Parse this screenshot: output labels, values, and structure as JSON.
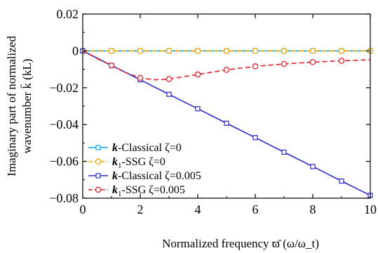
{
  "chart_data": {
    "type": "line",
    "xlabel": "Normalized frequency ϖ̄ (ω/ω_t)",
    "ylabel_line1": "Imaginary part of normalized",
    "ylabel_line2": "wavenumber k̄ (kL)",
    "xlim": [
      0,
      10
    ],
    "ylim": [
      -0.08,
      0.02
    ],
    "x_ticks": [
      0,
      2,
      4,
      6,
      8,
      10
    ],
    "x_tick_labels": [
      "0",
      "2",
      "4",
      "6",
      "8",
      "10"
    ],
    "y_ticks": [
      0.02,
      0,
      -0.02,
      -0.04,
      -0.06,
      -0.08
    ],
    "y_tick_labels": [
      "0.02",
      "0",
      "−0.02",
      "−0.04",
      "−0.06",
      "−0.08"
    ],
    "grid": false,
    "legend_position": "bottom-left",
    "series": [
      {
        "name": "k-Classical ζ=0",
        "color": "#00a8e8",
        "marker": "square",
        "dashed": false,
        "x": [
          0,
          1,
          2,
          3,
          4,
          5,
          6,
          7,
          8,
          9,
          10
        ],
        "y": [
          0,
          0,
          0,
          0,
          0,
          0,
          0,
          0,
          0,
          0,
          0
        ]
      },
      {
        "name": "k1-SSG ζ=0",
        "color": "#f0a800",
        "marker": "circle",
        "dashed": true,
        "x": [
          0,
          1,
          2,
          3,
          4,
          5,
          6,
          7,
          8,
          9,
          10
        ],
        "y": [
          0,
          0,
          0,
          0,
          0,
          0,
          0,
          0,
          0,
          0,
          0
        ]
      },
      {
        "name": "k-Classical ζ=0.005",
        "color": "#2a2ad0",
        "marker": "square",
        "dashed": false,
        "x": [
          0,
          1,
          2,
          3,
          4,
          5,
          6,
          7,
          8,
          9,
          10
        ],
        "y": [
          0,
          -0.0079,
          -0.0157,
          -0.0236,
          -0.0314,
          -0.0393,
          -0.0471,
          -0.055,
          -0.0628,
          -0.0707,
          -0.0785
        ]
      },
      {
        "name": "k1-SSG ζ=0.005",
        "color": "#e8202a",
        "marker": "circle",
        "dashed": true,
        "x": [
          0,
          0.5,
          1,
          1.5,
          2,
          2.5,
          3,
          4,
          5,
          6,
          7,
          8,
          9,
          10
        ],
        "y": [
          0,
          -0.0042,
          -0.0079,
          -0.0118,
          -0.0147,
          -0.0157,
          -0.0153,
          -0.0128,
          -0.0103,
          -0.0084,
          -0.0071,
          -0.0061,
          -0.0054,
          -0.0048
        ],
        "marker_x": [
          1,
          2,
          3,
          4,
          5,
          6,
          7,
          8,
          9
        ],
        "marker_y": [
          -0.0079,
          -0.0147,
          -0.0153,
          -0.0128,
          -0.0103,
          -0.0084,
          -0.0071,
          -0.0061,
          -0.0054
        ]
      }
    ],
    "legend": [
      {
        "prefix": "k",
        "sub": "",
        "suffix": "-Classical ζ=0"
      },
      {
        "prefix": "k",
        "sub": "1",
        "suffix": "-SSG ζ=0"
      },
      {
        "prefix": "k",
        "sub": "",
        "suffix": "-Classical ζ=0.005"
      },
      {
        "prefix": "k",
        "sub": "1",
        "suffix": "-SSG ζ=0.005"
      }
    ]
  }
}
